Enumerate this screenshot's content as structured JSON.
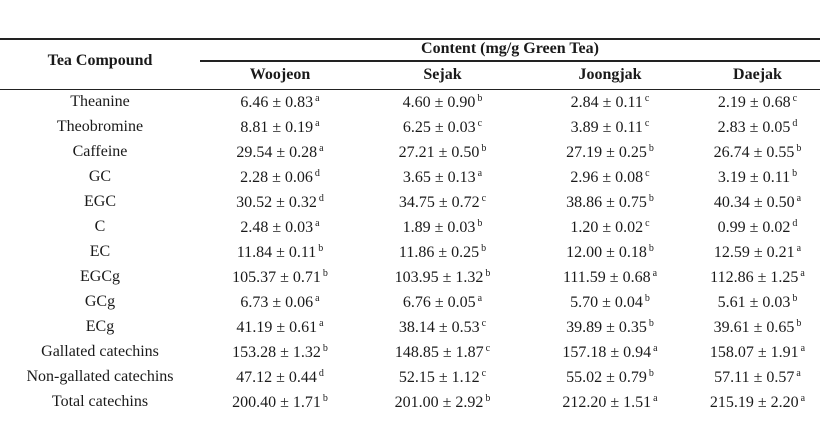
{
  "table": {
    "compound_header": "Tea Compound",
    "group_header": "Content (mg/g Green Tea)",
    "columns": [
      "Woojeon",
      "Sejak",
      "Joongjak",
      "Daejak"
    ],
    "rows": [
      {
        "name": "Theanine",
        "values": [
          [
            "6.46 ± 0.83",
            "a"
          ],
          [
            "4.60 ± 0.90",
            "b"
          ],
          [
            "2.84 ± 0.11",
            "c"
          ],
          [
            "2.19 ± 0.68",
            "c"
          ]
        ]
      },
      {
        "name": "Theobromine",
        "values": [
          [
            "8.81 ± 0.19",
            "a"
          ],
          [
            "6.25 ± 0.03",
            "c"
          ],
          [
            "3.89 ± 0.11",
            "c"
          ],
          [
            "2.83 ± 0.05",
            "d"
          ]
        ]
      },
      {
        "name": "Caffeine",
        "values": [
          [
            "29.54 ± 0.28",
            "a"
          ],
          [
            "27.21 ± 0.50",
            "b"
          ],
          [
            "27.19 ± 0.25",
            "b"
          ],
          [
            "26.74 ± 0.55",
            "b"
          ]
        ]
      },
      {
        "name": "GC",
        "values": [
          [
            "2.28 ± 0.06",
            "d"
          ],
          [
            "3.65 ± 0.13",
            "a"
          ],
          [
            "2.96 ± 0.08",
            "c"
          ],
          [
            "3.19 ± 0.11",
            "b"
          ]
        ]
      },
      {
        "name": "EGC",
        "values": [
          [
            "30.52 ± 0.32",
            "d"
          ],
          [
            "34.75 ± 0.72",
            "c"
          ],
          [
            "38.86 ± 0.75",
            "b"
          ],
          [
            "40.34 ± 0.50",
            "a"
          ]
        ]
      },
      {
        "name": "C",
        "values": [
          [
            "2.48 ± 0.03",
            "a"
          ],
          [
            "1.89 ± 0.03",
            "b"
          ],
          [
            "1.20 ± 0.02",
            "c"
          ],
          [
            "0.99 ± 0.02",
            "d"
          ]
        ]
      },
      {
        "name": "EC",
        "values": [
          [
            "11.84 ± 0.11",
            "b"
          ],
          [
            "11.86 ± 0.25",
            "b"
          ],
          [
            "12.00 ± 0.18",
            "b"
          ],
          [
            "12.59 ± 0.21",
            "a"
          ]
        ]
      },
      {
        "name": "EGCg",
        "values": [
          [
            "105.37 ± 0.71",
            "b"
          ],
          [
            "103.95 ± 1.32",
            "b"
          ],
          [
            "111.59 ± 0.68",
            "a"
          ],
          [
            "112.86 ± 1.25",
            "a"
          ]
        ]
      },
      {
        "name": "GCg",
        "values": [
          [
            "6.73 ± 0.06",
            "a"
          ],
          [
            "6.76 ± 0.05",
            "a"
          ],
          [
            "5.70 ± 0.04",
            "b"
          ],
          [
            "5.61 ± 0.03",
            "b"
          ]
        ]
      },
      {
        "name": "ECg",
        "values": [
          [
            "41.19 ± 0.61",
            "a"
          ],
          [
            "38.14 ± 0.53",
            "c"
          ],
          [
            "39.89 ± 0.35",
            "b"
          ],
          [
            "39.61 ± 0.65",
            "b"
          ]
        ]
      },
      {
        "name": "Gallated catechins",
        "values": [
          [
            "153.28 ± 1.32",
            "b"
          ],
          [
            "148.85 ± 1.87",
            "c"
          ],
          [
            "157.18 ± 0.94",
            "a"
          ],
          [
            "158.07 ± 1.91",
            "a"
          ]
        ]
      },
      {
        "name": "Non-gallated catechins",
        "values": [
          [
            "47.12 ± 0.44",
            "d"
          ],
          [
            "52.15 ± 1.12",
            "c"
          ],
          [
            "55.02 ± 0.79",
            "b"
          ],
          [
            "57.11 ± 0.57",
            "a"
          ]
        ]
      },
      {
        "name": "Total catechins",
        "values": [
          [
            "200.40 ± 1.71",
            "b"
          ],
          [
            "201.00 ± 2.92",
            "b"
          ],
          [
            "212.20 ± 1.51",
            "a"
          ],
          [
            "215.19 ± 2.20",
            "a"
          ]
        ]
      }
    ]
  }
}
